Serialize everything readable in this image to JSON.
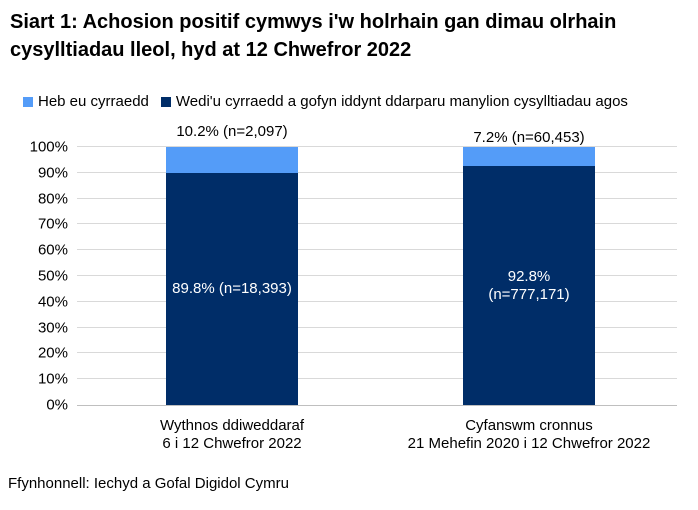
{
  "title": "Siart 1: Achosion positif cymwys i'w holrhain gan dimau olrhain cysylltiadau lleol, hyd at 12 Chwefror 2022",
  "legend": [
    {
      "label": "Heb eu cyrraedd",
      "color": "#549CF8"
    },
    {
      "label": "Wedi'u cyrraedd a gofyn iddynt ddarparu manylion cysylltiadau agos",
      "color": "#002D68"
    }
  ],
  "source": "Ffynhonnell: Iechyd a Gofal Digidol Cymru",
  "colors": {
    "grid": "#D9D9D9",
    "axis": "#BFBFBF",
    "reached": "#002D68",
    "not_reached": "#549CF8",
    "inside_label_text": "#ffffff"
  },
  "chart_data": {
    "type": "bar",
    "stacked": true,
    "title": "Siart 1: Achosion positif cymwys i'w holrhain gan dimau olrhain cysylltiadau lleol, hyd at 12 Chwefror 2022",
    "categories": [
      [
        "Wythnos ddiweddaraf",
        "6 i 12 Chwefror 2022"
      ],
      [
        "Cyfanswm cronnus",
        "21 Mehefin 2020 i 12 Chwefror 2022"
      ]
    ],
    "series": [
      {
        "name": "Wedi'u cyrraedd a gofyn iddynt ddarparu manylion cysylltiadau agos",
        "values": [
          89.8,
          92.8
        ],
        "counts": [
          18393,
          777171
        ],
        "color": "#002D68"
      },
      {
        "name": "Heb eu cyrraedd",
        "values": [
          10.2,
          7.2
        ],
        "counts": [
          2097,
          60453
        ],
        "color": "#549CF8"
      }
    ],
    "top_labels": [
      "10.2% (n=2,097)",
      "7.2% (n=60,453)"
    ],
    "inside_labels": [
      [
        "89.8% (n=18,393)"
      ],
      [
        "92.8%",
        "(n=777,171)"
      ]
    ],
    "ylim": [
      0,
      100
    ],
    "yticks": [
      "0%",
      "10%",
      "20%",
      "30%",
      "40%",
      "50%",
      "60%",
      "70%",
      "80%",
      "90%",
      "100%"
    ],
    "grid": true,
    "legend_position": "top"
  }
}
